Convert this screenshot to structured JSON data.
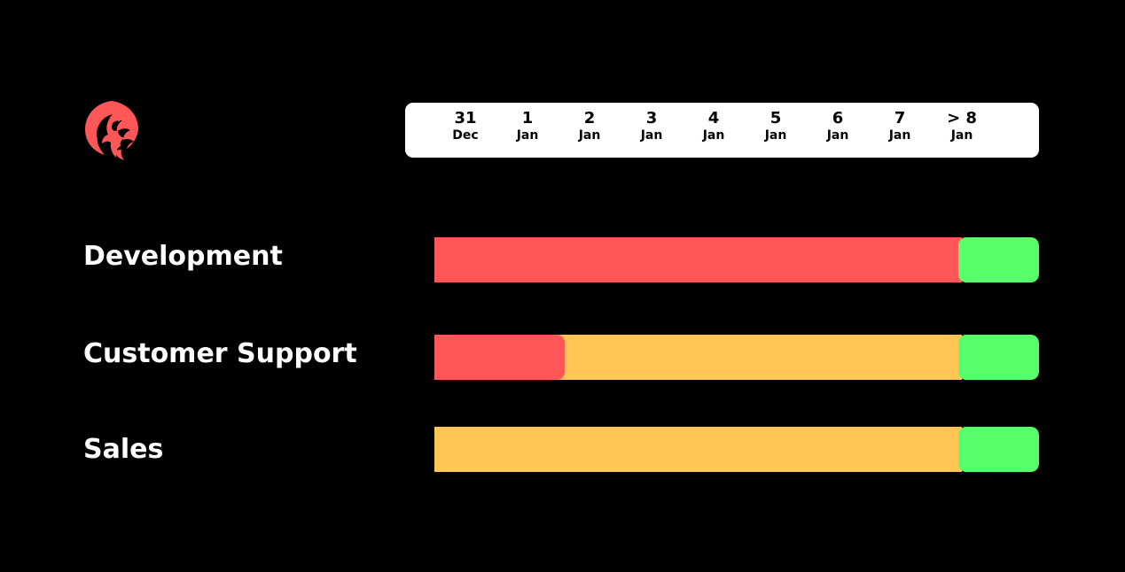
{
  "timeline": {
    "dates": [
      {
        "day": "31",
        "month": "Dec"
      },
      {
        "day": "1",
        "month": "Jan"
      },
      {
        "day": "2",
        "month": "Jan"
      },
      {
        "day": "3",
        "month": "Jan"
      },
      {
        "day": "4",
        "month": "Jan"
      },
      {
        "day": "5",
        "month": "Jan"
      },
      {
        "day": "6",
        "month": "Jan"
      },
      {
        "day": "7",
        "month": "Jan"
      },
      {
        "day": "> 8",
        "month": "Jan"
      }
    ]
  },
  "colors": {
    "red": "#ff5757",
    "amber": "#ffc655",
    "green": "#57ff6a",
    "logo": "#ff5757"
  },
  "logo": {
    "icon": "phoenix-icon"
  },
  "rows": [
    {
      "label": "Development",
      "segments": [
        {
          "color": "red",
          "start": -0.5,
          "end": 8
        },
        {
          "color": "green",
          "start": 8,
          "end": 9.5
        }
      ]
    },
    {
      "label": "Customer Support",
      "segments": [
        {
          "color": "amber",
          "start": -0.5,
          "end": 8
        },
        {
          "color": "red",
          "start": -0.5,
          "end": 2
        },
        {
          "color": "green",
          "start": 8,
          "end": 9.5
        }
      ]
    },
    {
      "label": "Sales",
      "segments": [
        {
          "color": "amber",
          "start": -0.5,
          "end": 8
        },
        {
          "color": "green",
          "start": 8,
          "end": 9.5
        }
      ]
    }
  ]
}
